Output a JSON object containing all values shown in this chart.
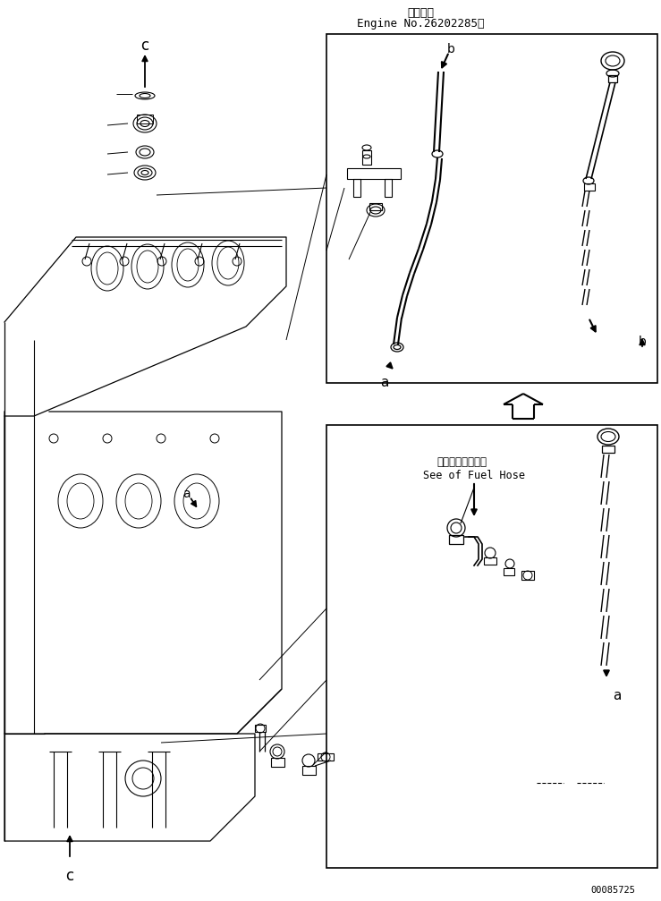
{
  "title_jp": "適用号機",
  "title_en": "Engine No.26202285～",
  "part_number": "00085725",
  "label_a": "a",
  "label_b": "b",
  "label_c": "c",
  "fuel_hose_jp": "フェルホース参照",
  "fuel_hose_en": "See of Fuel Hose",
  "bg_color": "#ffffff",
  "line_color": "#000000"
}
